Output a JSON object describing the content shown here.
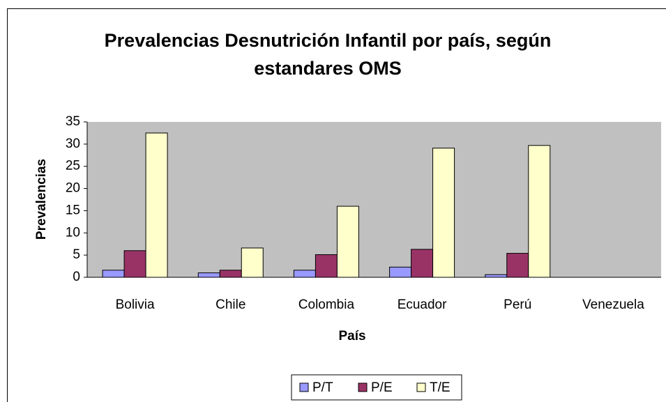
{
  "chart_data": {
    "type": "bar",
    "title": "Prevalencias Desnutrición Infantil por país, según estandares OMS",
    "xlabel": "País",
    "ylabel": "Prevalencias",
    "categories": [
      "Bolivia",
      "Chile",
      "Colombia",
      "Ecuador",
      "Perú",
      "Venezuela"
    ],
    "series": [
      {
        "name": "P/T",
        "color": "#9999ff",
        "values": [
          1.6,
          1,
          1.6,
          2.3,
          0.6,
          null
        ]
      },
      {
        "name": "P/E",
        "color": "#993366",
        "values": [
          6,
          1.6,
          5.1,
          6.3,
          5.4,
          null
        ]
      },
      {
        "name": "T/E",
        "color": "#ffffcc",
        "values": [
          32.5,
          6.6,
          16,
          29.1,
          29.7,
          null
        ]
      }
    ],
    "ylim": [
      0,
      35
    ],
    "yticks": [
      0,
      5,
      10,
      15,
      20,
      25,
      30,
      35
    ],
    "legend": "bottom",
    "plot_background": "#c0c0c0"
  }
}
